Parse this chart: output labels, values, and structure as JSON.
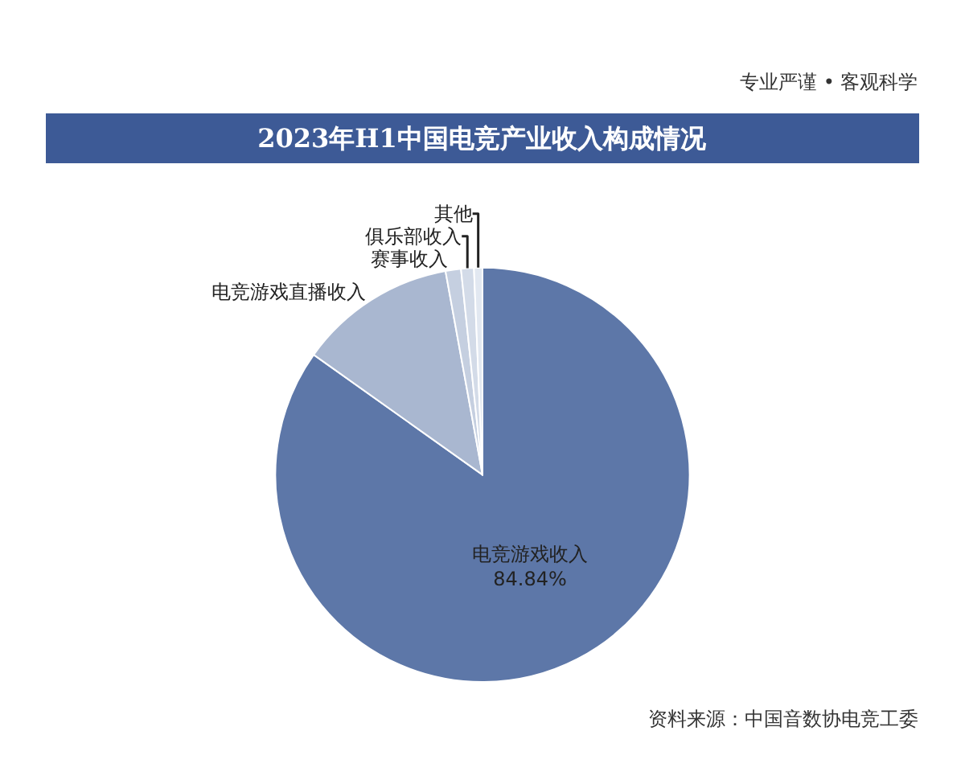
{
  "chart_data": {
    "type": "pie",
    "title": "2023年H1中国电竞产业收入构成情况",
    "categories": [
      "电竞游戏收入",
      "电竞游戏直播收入",
      "赛事收入",
      "俱乐部收入",
      "其他"
    ],
    "values": [
      84.84,
      12.3,
      1.2,
      1.0,
      0.66
    ],
    "value_labels": [
      "84.84%",
      null,
      null,
      null,
      null
    ],
    "colors": [
      "#5d77a8",
      "#a9b7d0",
      "#c5cfe0",
      "#d3dbe8",
      "#e2e8f1"
    ],
    "annotations": [
      "专业严谨 • 客观科学",
      "资料来源：中国音数协电竞工委"
    ]
  }
}
